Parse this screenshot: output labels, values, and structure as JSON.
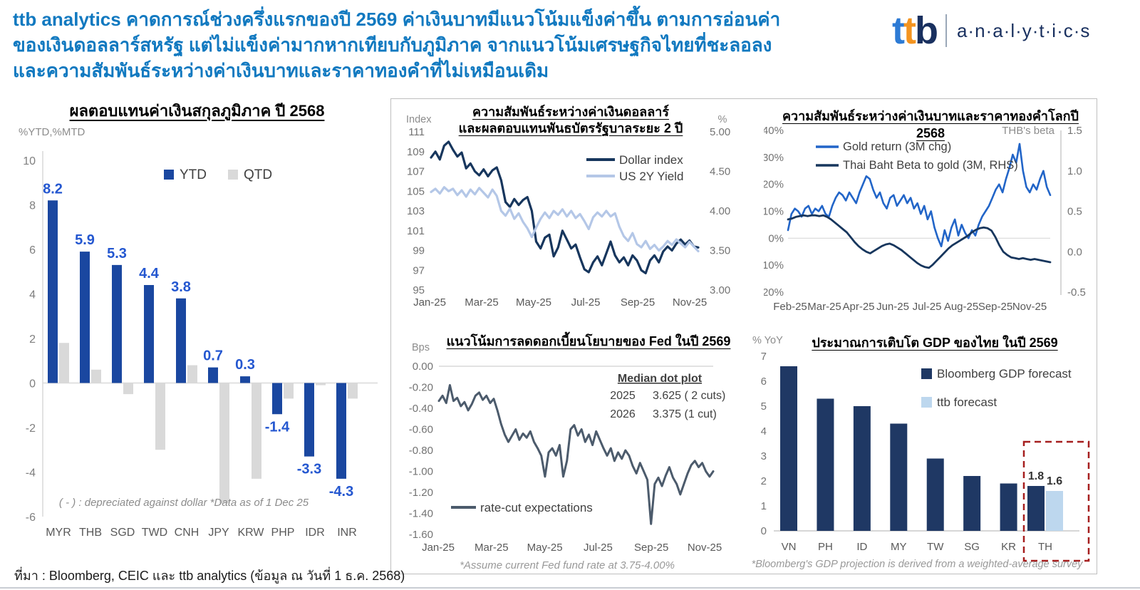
{
  "header": {
    "title_lines": [
      "ttb analytics คาดการณ์ช่วงครึ่งแรกของปี 2569 ค่าเงินบาทมีแนวโน้มแข็งค่าขึ้น ตามการอ่อนค่า",
      "ของเงินดอลลาร์สหรัฐ แต่ไม่แข็งค่ามากหากเทียบกับภูมิภาค จากแนวโน้มเศรษฐกิจไทยที่ชะลอลง",
      "และความสัมพันธ์ระหว่างค่าเงินบาทและราคาทองคำที่ไม่เหมือนเดิม"
    ],
    "logo": {
      "t1": "t",
      "t2": "t",
      "b": "b",
      "suffix": "a·n·a·l·y·t·i·c·s"
    }
  },
  "footer": {
    "source": "ที่มา : Bloomberg, CEIC และ ttb analytics (ข้อมูล ณ วันที่ 1 ธ.ค. 2568)"
  },
  "colors": {
    "title_blue": "#1179C0",
    "navy": "#17365D",
    "bar_blue": "#1A47A0",
    "light_gray_bar": "#D9D9D9",
    "light_blue_line": "#B4C7E7",
    "gold_blue": "#2265C8",
    "slate": "#4C5B6C",
    "gdp_navy": "#1F3864",
    "ttb_light_blue": "#BDD7EE",
    "value_label_blue": "#2457D0",
    "highlight_red": "#A61F1F",
    "border_gray": "#BFBFBF"
  },
  "chart_data": [
    {
      "id": "currency-returns",
      "type": "bar",
      "title": "ผลตอบแทนค่าเงินสกุลภูมิภาค ปี 2568",
      "ylabel": "%YTD,%MTD",
      "categories": [
        "MYR",
        "THB",
        "SGD",
        "TWD",
        "CNH",
        "JPY",
        "KRW",
        "PHP",
        "IDR",
        "INR"
      ],
      "series": [
        {
          "name": "YTD",
          "color": "#1A47A0",
          "values": [
            8.2,
            5.9,
            5.3,
            4.4,
            3.8,
            0.7,
            0.3,
            -1.4,
            -3.3,
            -4.3
          ],
          "labeled": true
        },
        {
          "name": "QTD",
          "color": "#D9D9D9",
          "values": [
            1.8,
            0.6,
            -0.5,
            -3.0,
            0.8,
            -5.4,
            -4.3,
            -0.7,
            -0.1,
            -0.7
          ],
          "labeled": false
        }
      ],
      "ylim": [
        -6,
        10
      ],
      "ytick_values": [
        10,
        8,
        6,
        4,
        2,
        0,
        -2,
        -4,
        -6
      ],
      "yticks": [
        "10",
        "8",
        "6",
        "4",
        "2",
        "0",
        "-2",
        "-4",
        "-6"
      ],
      "annotation": "( - ) : depreciated against dollar *Data as of 1 Dec 25",
      "label_color": "#2457D0",
      "legend_position": "top",
      "grid": false
    },
    {
      "id": "dollar-index-vs-2y",
      "type": "line",
      "title_lines": [
        "ความสัมพันธ์ระหว่างค่าเงินดอลลาร์",
        "และผลตอบแทนพันธบัตรรัฐบาลระยะ 2 ปี"
      ],
      "left_axis_label": "Index",
      "right_axis_label": "%",
      "left_ticks": [
        "111",
        "109",
        "107",
        "105",
        "103",
        "101",
        "99",
        "97",
        "95"
      ],
      "left_tick_values": [
        111,
        109,
        107,
        105,
        103,
        101,
        99,
        97,
        95
      ],
      "left_range": [
        95,
        111
      ],
      "right_ticks": [
        "5.00",
        "4.50",
        "4.00",
        "3.50",
        "3.00"
      ],
      "right_tick_values": [
        5.0,
        4.5,
        4.0,
        3.5,
        3.0
      ],
      "right_range": [
        3.0,
        5.0
      ],
      "x_ticks": [
        "Jan-25",
        "Mar-25",
        "May-25",
        "Jul-25",
        "Sep-25",
        "Nov-25"
      ],
      "legend_position": "upper-right",
      "grid": false,
      "series": [
        {
          "name": "Dollar index",
          "color": "#17365D",
          "axis": "left",
          "values": [
            108.4,
            109.0,
            108.2,
            109.6,
            110.0,
            109.2,
            108.5,
            108.9,
            107.3,
            107.8,
            107.0,
            106.6,
            107.2,
            106.5,
            107.1,
            107.4,
            106.1,
            103.9,
            103.4,
            104.2,
            103.6,
            104.1,
            104.4,
            103.0,
            99.9,
            99.2,
            100.3,
            100.6,
            98.4,
            99.3,
            101.0,
            100.1,
            99.2,
            99.6,
            98.3,
            97.1,
            96.8,
            97.8,
            98.4,
            97.5,
            98.7,
            99.9,
            98.5,
            97.8,
            98.3,
            97.5,
            98.5,
            98.0,
            97.0,
            96.7,
            98.0,
            98.5,
            97.8,
            98.9,
            99.4,
            99.0,
            99.7,
            100.1,
            99.6,
            100.0,
            99.4,
            99.3
          ]
        },
        {
          "name": "US 2Y Yield",
          "color": "#B4C7E7",
          "axis": "right",
          "values": [
            4.24,
            4.28,
            4.22,
            4.3,
            4.25,
            4.28,
            4.2,
            4.26,
            4.18,
            4.27,
            4.21,
            4.29,
            4.23,
            4.17,
            4.27,
            4.19,
            4.0,
            3.94,
            4.03,
            3.9,
            3.97,
            3.86,
            3.78,
            3.67,
            3.79,
            3.9,
            3.98,
            3.91,
            4.0,
            3.95,
            4.02,
            3.93,
            4.0,
            3.91,
            3.96,
            3.87,
            3.77,
            3.92,
            3.98,
            3.93,
            4.0,
            3.93,
            3.97,
            3.8,
            3.68,
            3.62,
            3.72,
            3.58,
            3.54,
            3.62,
            3.52,
            3.57,
            3.5,
            3.55,
            3.62,
            3.57,
            3.64,
            3.59,
            3.54,
            3.61,
            3.55,
            3.49
          ]
        }
      ]
    },
    {
      "id": "baht-gold-relation",
      "type": "line",
      "title": "ความสัมพันธ์ระหว่างค่าเงินบาทและราคาทองคำโลกปี 2568",
      "right_axis_label": "THB's beta",
      "left_ticks": [
        "40%",
        "30%",
        "20%",
        "10%",
        "0%",
        "-10%",
        "-20%"
      ],
      "left_tick_values": [
        40,
        30,
        20,
        10,
        0,
        -10,
        -20
      ],
      "left_range": [
        -20,
        40
      ],
      "right_ticks": [
        "1.5",
        "1.0",
        "0.5",
        "0.0",
        "-0.5"
      ],
      "right_tick_values": [
        1.5,
        1.0,
        0.5,
        0.0,
        -0.5
      ],
      "right_range": [
        -0.5,
        1.5
      ],
      "x_ticks": [
        "Feb-25",
        "Mar-25",
        "Apr-25",
        "Jun-25",
        "Jul-25",
        "Aug-25",
        "Sep-25",
        "Nov-25"
      ],
      "legend_position": "upper-left",
      "grid": false,
      "series": [
        {
          "name": "Gold return (3M chg)",
          "color": "#2265C8",
          "axis": "left",
          "values": [
            3,
            9,
            11,
            10,
            8,
            11,
            12,
            9,
            11,
            10,
            12,
            9,
            8,
            12,
            15,
            17,
            16,
            14,
            17,
            15,
            13,
            17,
            20,
            23,
            22,
            18,
            15,
            17,
            13,
            11,
            15,
            16,
            12,
            14,
            16,
            13,
            15,
            11,
            13,
            9,
            12,
            7,
            10,
            4,
            0,
            -3,
            3,
            -1,
            4,
            7,
            1,
            5,
            2,
            0,
            3,
            1,
            5,
            8,
            10,
            12,
            15,
            18,
            20,
            17,
            22,
            26,
            31,
            28,
            35,
            25,
            19,
            17,
            20,
            18,
            22,
            25,
            19,
            16
          ]
        },
        {
          "name": "Thai Baht Beta to gold (3M, RHS)",
          "color": "#17365D",
          "axis": "right",
          "values": [
            0.4,
            0.41,
            0.43,
            0.44,
            0.45,
            0.44,
            0.45,
            0.45,
            0.44,
            0.45,
            0.43,
            0.4,
            0.36,
            0.32,
            0.28,
            0.24,
            0.18,
            0.12,
            0.07,
            0.03,
            0.0,
            -0.02,
            0.01,
            0.04,
            0.07,
            0.09,
            0.1,
            0.08,
            0.05,
            0.02,
            -0.02,
            -0.06,
            -0.1,
            -0.14,
            -0.17,
            -0.19,
            -0.2,
            -0.16,
            -0.11,
            -0.06,
            -0.01,
            0.04,
            0.08,
            0.11,
            0.14,
            0.17,
            0.2,
            0.24,
            0.27,
            0.29,
            0.3,
            0.29,
            0.26,
            0.18,
            0.08,
            0.0,
            -0.04,
            -0.07,
            -0.08,
            -0.09,
            -0.08,
            -0.09,
            -0.1,
            -0.09,
            -0.1,
            -0.11,
            -0.12,
            -0.13
          ]
        }
      ]
    },
    {
      "id": "fed-rate-cut-outlook",
      "type": "line",
      "title": "แนวโน้มการลดดอกเบี้ยนโยบายของ Fed ในปี 2569",
      "ylabel": "Bps",
      "yticks": [
        "0.00",
        "-0.20",
        "-0.40",
        "-0.60",
        "-0.80",
        "-1.00",
        "-1.20",
        "-1.40",
        "-1.60"
      ],
      "ytick_values": [
        0,
        -0.2,
        -0.4,
        -0.6,
        -0.8,
        -1.0,
        -1.2,
        -1.4,
        -1.6
      ],
      "yrange": [
        -1.6,
        0
      ],
      "x_ticks": [
        "Jan-25",
        "Mar-25",
        "May-25",
        "Jul-25",
        "Sep-25",
        "Nov-25"
      ],
      "legend_position": "lower-left",
      "grid": false,
      "series": [
        {
          "name": "rate-cut expectations",
          "color": "#4C5B6C",
          "values": [
            -0.33,
            -0.28,
            -0.35,
            -0.18,
            -0.33,
            -0.3,
            -0.38,
            -0.34,
            -0.42,
            -0.36,
            -0.28,
            -0.25,
            -0.32,
            -0.28,
            -0.35,
            -0.31,
            -0.42,
            -0.55,
            -0.65,
            -0.72,
            -0.66,
            -0.6,
            -0.7,
            -0.64,
            -0.68,
            -0.62,
            -0.72,
            -0.78,
            -0.85,
            -1.05,
            -0.82,
            -0.78,
            -0.85,
            -0.75,
            -1.05,
            -0.9,
            -0.6,
            -0.56,
            -0.66,
            -0.6,
            -0.72,
            -0.65,
            -0.75,
            -0.62,
            -0.7,
            -0.78,
            -0.85,
            -0.78,
            -0.9,
            -0.82,
            -0.88,
            -0.8,
            -0.85,
            -0.95,
            -1.02,
            -0.92,
            -1.0,
            -1.08,
            -1.5,
            -1.12,
            -1.06,
            -1.14,
            -1.04,
            -0.96,
            -1.06,
            -1.12,
            -1.22,
            -1.12,
            -1.02,
            -0.94,
            -0.9,
            -0.96,
            -0.92,
            -1.0,
            -1.05,
            -1.0
          ]
        }
      ],
      "dot_plot": {
        "title": "Median dot plot",
        "rows": [
          {
            "year": "2025",
            "value": "3.625 ( 2 cuts)"
          },
          {
            "year": "2026",
            "value": "3.375 (1 cut)"
          }
        ]
      },
      "footnote": "*Assume current Fed fund rate at 3.75-4.00%"
    },
    {
      "id": "gdp-forecast-2569",
      "type": "bar",
      "title": "ประมาณการเติบโต GDP ของไทย ในปี 2569",
      "ylabel": "% YoY",
      "yticks": [
        "7",
        "6",
        "5",
        "4",
        "3",
        "2",
        "1",
        "0"
      ],
      "ytick_values": [
        7,
        6,
        5,
        4,
        3,
        2,
        1,
        0
      ],
      "ylim": [
        0,
        7
      ],
      "categories": [
        "VN",
        "PH",
        "ID",
        "MY",
        "TW",
        "SG",
        "KR",
        "TH"
      ],
      "series": [
        {
          "name": "Bloomberg GDP forecast",
          "color": "#1F3864",
          "values": [
            6.6,
            5.3,
            5.0,
            4.3,
            2.9,
            2.2,
            1.9,
            1.8
          ]
        },
        {
          "name": "ttb forecast",
          "color": "#BDD7EE",
          "values": [
            null,
            null,
            null,
            null,
            null,
            null,
            null,
            1.6
          ]
        }
      ],
      "value_labels": [
        "1.8",
        "1.6"
      ],
      "highlight_category": "TH",
      "legend_position": "upper-right",
      "grid": false,
      "footnote": "*Bloomberg's GDP projection is derived from a weighted-average survey"
    }
  ]
}
